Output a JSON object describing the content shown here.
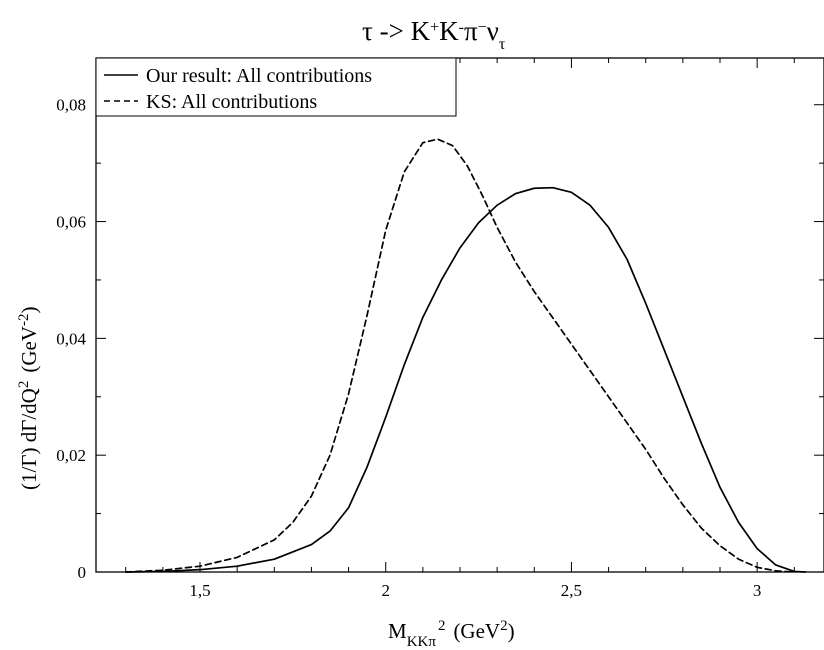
{
  "chart_data": {
    "type": "line",
    "title": {
      "base": "τ -> K",
      "sup1": "+",
      "mid1": "K",
      "sup2": "-",
      "mid2": "π",
      "sup3": "−",
      "mid3": "ν",
      "sub1": "τ"
    },
    "xlabel": {
      "base": "M",
      "sub": "KKπ",
      "sup": "2",
      "unit_prefix": "(GeV",
      "unit_sup": "2",
      "unit_suffix": ")"
    },
    "ylabel": {
      "base": "(1/Γ) dΓ/dQ",
      "sup": "2",
      "unit_prefix": "(GeV",
      "unit_sup": "-2",
      "unit_suffix": ")"
    },
    "xlim": [
      1.22,
      3.18
    ],
    "ylim": [
      0,
      0.088
    ],
    "x_ticks": [
      {
        "value": 1.5,
        "label": "1,5"
      },
      {
        "value": 2.0,
        "label": "2"
      },
      {
        "value": 2.5,
        "label": "2,5"
      },
      {
        "value": 3.0,
        "label": "3"
      }
    ],
    "y_ticks": [
      {
        "value": 0.0,
        "label": "0"
      },
      {
        "value": 0.02,
        "label": "0,02"
      },
      {
        "value": 0.04,
        "label": "0,04"
      },
      {
        "value": 0.06,
        "label": "0,06"
      },
      {
        "value": 0.08,
        "label": "0,08"
      }
    ],
    "grid": false,
    "legend_position": "top-left",
    "series": [
      {
        "name": "Our result: All contributions",
        "style": "solid",
        "color": "#000000",
        "points": [
          [
            1.3,
            0.0
          ],
          [
            1.4,
            0.0001
          ],
          [
            1.5,
            0.0004
          ],
          [
            1.6,
            0.001
          ],
          [
            1.7,
            0.0022
          ],
          [
            1.8,
            0.0047
          ],
          [
            1.85,
            0.007
          ],
          [
            1.9,
            0.011
          ],
          [
            1.95,
            0.018
          ],
          [
            2.0,
            0.0265
          ],
          [
            2.05,
            0.0355
          ],
          [
            2.1,
            0.0436
          ],
          [
            2.15,
            0.05
          ],
          [
            2.2,
            0.0555
          ],
          [
            2.25,
            0.0598
          ],
          [
            2.3,
            0.0628
          ],
          [
            2.35,
            0.0648
          ],
          [
            2.4,
            0.0657
          ],
          [
            2.45,
            0.0658
          ],
          [
            2.5,
            0.065
          ],
          [
            2.55,
            0.0628
          ],
          [
            2.6,
            0.059
          ],
          [
            2.65,
            0.0535
          ],
          [
            2.7,
            0.046
          ],
          [
            2.75,
            0.038
          ],
          [
            2.8,
            0.03
          ],
          [
            2.85,
            0.022
          ],
          [
            2.9,
            0.0145
          ],
          [
            2.95,
            0.0085
          ],
          [
            3.0,
            0.004
          ],
          [
            3.05,
            0.0012
          ],
          [
            3.1,
            0.0001
          ],
          [
            3.13,
            0.0
          ]
        ]
      },
      {
        "name": "KS: All contributions",
        "style": "dashed",
        "color": "#000000",
        "points": [
          [
            1.3,
            0.0
          ],
          [
            1.4,
            0.0003
          ],
          [
            1.5,
            0.001
          ],
          [
            1.6,
            0.0025
          ],
          [
            1.7,
            0.0055
          ],
          [
            1.75,
            0.0085
          ],
          [
            1.8,
            0.013
          ],
          [
            1.85,
            0.02
          ],
          [
            1.9,
            0.0305
          ],
          [
            1.95,
            0.044
          ],
          [
            2.0,
            0.0585
          ],
          [
            2.05,
            0.0685
          ],
          [
            2.1,
            0.0735
          ],
          [
            2.14,
            0.0741
          ],
          [
            2.18,
            0.073
          ],
          [
            2.22,
            0.0695
          ],
          [
            2.26,
            0.0645
          ],
          [
            2.3,
            0.059
          ],
          [
            2.35,
            0.053
          ],
          [
            2.4,
            0.048
          ],
          [
            2.45,
            0.0435
          ],
          [
            2.5,
            0.039
          ],
          [
            2.55,
            0.0345
          ],
          [
            2.6,
            0.03
          ],
          [
            2.65,
            0.0255
          ],
          [
            2.7,
            0.021
          ],
          [
            2.75,
            0.016
          ],
          [
            2.8,
            0.0115
          ],
          [
            2.85,
            0.0075
          ],
          [
            2.9,
            0.0045
          ],
          [
            2.95,
            0.0022
          ],
          [
            3.0,
            0.0008
          ],
          [
            3.05,
            0.0002
          ],
          [
            3.1,
            0.0
          ]
        ]
      }
    ]
  }
}
